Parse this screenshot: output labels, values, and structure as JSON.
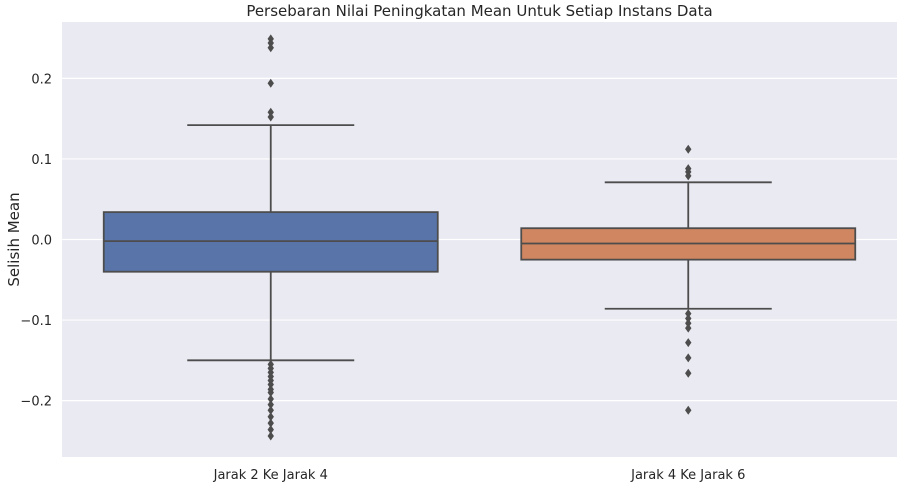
{
  "chart_data": {
    "type": "box",
    "title": "Persebaran Nilai Peningkatan Mean Untuk Setiap Instans Data",
    "xlabel": "",
    "ylabel": "Selisih Mean",
    "ylim": [
      -0.27,
      0.27
    ],
    "yticks": [
      0.2,
      0.1,
      0.0,
      -0.1,
      -0.2
    ],
    "ytick_labels": [
      "0.2",
      "0.1",
      "0.0",
      "−0.1",
      "−0.2"
    ],
    "grid": true,
    "categories": [
      "Jarak 2 Ke Jarak 4",
      "Jarak 4 Ke Jarak 6"
    ],
    "boxes": [
      {
        "category": "Jarak 2 Ke Jarak 4",
        "color": "#5874a8",
        "whisker_low": -0.15,
        "q1": -0.04,
        "median": -0.002,
        "q3": 0.034,
        "whisker_high": 0.142,
        "outliers": [
          0.249,
          0.244,
          0.238,
          0.194,
          0.158,
          0.152,
          -0.155,
          -0.16,
          -0.165,
          -0.17,
          -0.175,
          -0.18,
          -0.186,
          -0.19,
          -0.198,
          -0.205,
          -0.212,
          -0.22,
          -0.228,
          -0.236,
          -0.244
        ]
      },
      {
        "category": "Jarak 4 Ke Jarak 6",
        "color": "#d08660",
        "whisker_low": -0.086,
        "q1": -0.025,
        "median": -0.005,
        "q3": 0.014,
        "whisker_high": 0.071,
        "outliers": [
          0.112,
          0.088,
          0.084,
          0.079,
          -0.092,
          -0.098,
          -0.104,
          -0.11,
          -0.128,
          -0.147,
          -0.166,
          -0.212
        ]
      }
    ],
    "colors": {
      "plot_background": "#eaeaf2",
      "grid": "#ffffff",
      "line": "#4d4d4d"
    }
  }
}
